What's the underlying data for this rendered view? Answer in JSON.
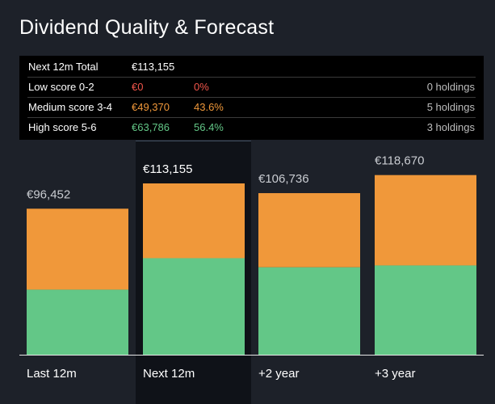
{
  "title": "Dividend Quality & Forecast",
  "summary": {
    "rows": [
      {
        "label": "Next 12m Total",
        "amount": "€113,155",
        "percent": "",
        "holdings": ""
      },
      {
        "label": "Low score 0-2",
        "amount": "€0",
        "percent": "0%",
        "holdings": "0 holdings"
      },
      {
        "label": "Medium score 3-4",
        "amount": "€49,370",
        "percent": "43.6%",
        "holdings": "5 holdings"
      },
      {
        "label": "High score 5-6",
        "amount": "€63,786",
        "percent": "56.4%",
        "holdings": "3 holdings"
      }
    ]
  },
  "colors": {
    "background": "#1d2129",
    "medium": "#f0983a",
    "high": "#63c787",
    "low": "#f2564b",
    "selected_bg": "#0f1218",
    "selected_line": "#3d4b5c"
  },
  "chart_data": {
    "type": "bar",
    "stacked": true,
    "categories": [
      "Last 12m",
      "Next 12m",
      "+2 year",
      "+3 year"
    ],
    "total_labels": [
      "€96,452",
      "€113,155",
      "€106,736",
      "€118,670"
    ],
    "totals": [
      96452,
      113155,
      106736,
      118670
    ],
    "series": [
      {
        "name": "High score 5-6",
        "color": "#63c787",
        "values": [
          43000,
          63786,
          57800,
          59000
        ]
      },
      {
        "name": "Medium score 3-4",
        "color": "#f0983a",
        "values": [
          53452,
          49370,
          48936,
          59670
        ]
      }
    ],
    "selected_index": 1,
    "ylim": [
      0,
      140000
    ]
  }
}
